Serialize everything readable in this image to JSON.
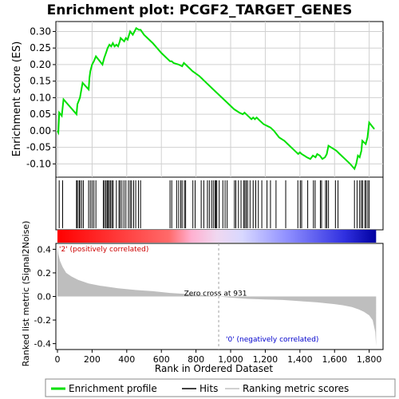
{
  "chart_data": {
    "type": "line",
    "title": "Enrichment plot: PCGF2_TARGET_GENES",
    "xlabel": "Rank in Ordered Dataset",
    "ylabel_top": "Enrichment score (ES)",
    "ylabel_bottom": "Ranked list metric (Signal2Noise)",
    "xlim": [
      0,
      1880
    ],
    "x_ticks": [
      0,
      200,
      400,
      600,
      800,
      1000,
      1200,
      1400,
      1600,
      1800
    ],
    "x_tick_labels": [
      "0",
      "200",
      "400",
      "600",
      "800",
      "1,000",
      "1,200",
      "1,400",
      "1,600",
      "1,800"
    ],
    "es_ylim": [
      -0.14,
      0.33
    ],
    "es_ticks": [
      -0.1,
      -0.05,
      0.0,
      0.05,
      0.1,
      0.15,
      0.2,
      0.25,
      0.3
    ],
    "es_tick_labels": [
      "-0.10",
      "-0.05",
      "0.00",
      "0.05",
      "0.10",
      "0.15",
      "0.20",
      "0.25",
      "0.30"
    ],
    "metric_ylim": [
      -0.45,
      0.45
    ],
    "metric_ticks": [
      -0.4,
      -0.2,
      0.0,
      0.2,
      0.4
    ],
    "metric_tick_labels": [
      "-0.4",
      "-0.2",
      "0.0",
      "0.2",
      "0.4"
    ],
    "n_genes": 1840,
    "zero_cross": 931,
    "zero_cross_label": "Zero cross at 931",
    "pos_label": "'2' (positively correlated)",
    "neg_label": "'0' (negatively correlated)",
    "es_curve": {
      "x": [
        0,
        5,
        10,
        25,
        35,
        110,
        115,
        130,
        145,
        180,
        185,
        190,
        200,
        210,
        222,
        260,
        270,
        280,
        290,
        300,
        310,
        320,
        330,
        340,
        350,
        360,
        365,
        375,
        385,
        395,
        405,
        420,
        435,
        445,
        455,
        470,
        480,
        500,
        550,
        600,
        650,
        660,
        670,
        700,
        720,
        730,
        740,
        780,
        820,
        860,
        900,
        940,
        980,
        1020,
        1050,
        1070,
        1080,
        1090,
        1100,
        1120,
        1130,
        1140,
        1150,
        1170,
        1190,
        1210,
        1230,
        1250,
        1280,
        1310,
        1340,
        1370,
        1390,
        1400,
        1410,
        1425,
        1440,
        1460,
        1475,
        1490,
        1500,
        1515,
        1530,
        1545,
        1555,
        1565,
        1580,
        1595,
        1610,
        1630,
        1660,
        1690,
        1715,
        1725,
        1735,
        1745,
        1755,
        1760,
        1770,
        1780,
        1790,
        1800,
        1815,
        1830
      ],
      "y": [
        0.0,
        -0.005,
        0.055,
        0.045,
        0.095,
        0.05,
        0.08,
        0.1,
        0.145,
        0.125,
        0.16,
        0.18,
        0.2,
        0.21,
        0.225,
        0.2,
        0.22,
        0.235,
        0.25,
        0.26,
        0.255,
        0.265,
        0.255,
        0.26,
        0.255,
        0.27,
        0.28,
        0.275,
        0.27,
        0.28,
        0.275,
        0.3,
        0.29,
        0.3,
        0.31,
        0.305,
        0.305,
        0.29,
        0.265,
        0.235,
        0.21,
        0.21,
        0.205,
        0.2,
        0.195,
        0.205,
        0.2,
        0.18,
        0.165,
        0.145,
        0.125,
        0.105,
        0.085,
        0.065,
        0.055,
        0.05,
        0.055,
        0.05,
        0.045,
        0.035,
        0.04,
        0.035,
        0.04,
        0.03,
        0.02,
        0.015,
        0.01,
        0.0,
        -0.02,
        -0.03,
        -0.045,
        -0.06,
        -0.07,
        -0.065,
        -0.07,
        -0.075,
        -0.08,
        -0.085,
        -0.075,
        -0.08,
        -0.07,
        -0.075,
        -0.085,
        -0.08,
        -0.07,
        -0.045,
        -0.05,
        -0.055,
        -0.06,
        -0.07,
        -0.085,
        -0.1,
        -0.115,
        -0.1,
        -0.075,
        -0.08,
        -0.06,
        -0.03,
        -0.035,
        -0.04,
        -0.02,
        0.025,
        0.015,
        0.005
      ]
    },
    "hits": [
      10,
      30,
      110,
      115,
      125,
      130,
      140,
      150,
      180,
      190,
      200,
      210,
      222,
      265,
      272,
      280,
      287,
      293,
      300,
      307,
      315,
      322,
      340,
      355,
      362,
      372,
      384,
      395,
      410,
      420,
      428,
      440,
      452,
      468,
      480,
      650,
      660,
      688,
      700,
      712,
      720,
      733,
      740,
      782,
      795,
      830,
      845,
      866,
      877,
      890,
      900,
      910,
      916,
      920,
      934,
      955,
      968,
      980,
      1022,
      1030,
      1045,
      1060,
      1075,
      1082,
      1090,
      1098,
      1112,
      1130,
      1145,
      1160,
      1180,
      1210,
      1230,
      1262,
      1318,
      1388,
      1402,
      1410,
      1445,
      1478,
      1488,
      1518,
      1525,
      1548,
      1555,
      1565,
      1605,
      1620,
      1715,
      1730,
      1745,
      1755,
      1762,
      1775,
      1782,
      1792,
      1800
    ],
    "metric_curve": {
      "x": [
        0,
        5,
        15,
        30,
        50,
        80,
        120,
        180,
        250,
        350,
        450,
        550,
        650,
        750,
        850,
        931,
        1000,
        1100,
        1200,
        1300,
        1400,
        1500,
        1600,
        1650,
        1700,
        1740,
        1770,
        1800,
        1820,
        1835,
        1840
      ],
      "y": [
        0.42,
        0.36,
        0.3,
        0.25,
        0.2,
        0.17,
        0.14,
        0.11,
        0.09,
        0.07,
        0.055,
        0.045,
        0.03,
        0.02,
        0.01,
        0.0,
        -0.01,
        -0.02,
        -0.025,
        -0.03,
        -0.04,
        -0.05,
        -0.065,
        -0.075,
        -0.09,
        -0.11,
        -0.13,
        -0.16,
        -0.2,
        -0.3,
        -0.42
      ]
    }
  },
  "legend": {
    "items": [
      {
        "label": "Enrichment profile",
        "color": "#00e000"
      },
      {
        "label": "Hits",
        "color": "#000000"
      },
      {
        "label": "Ranking metric scores",
        "color": "#c0c0c0"
      }
    ]
  },
  "colors": {
    "es_line": "#00e000",
    "metric_fill": "#bebebe",
    "pos_text": "#cc0000",
    "neg_text": "#0000cc",
    "grid": "#d0d0d0"
  }
}
